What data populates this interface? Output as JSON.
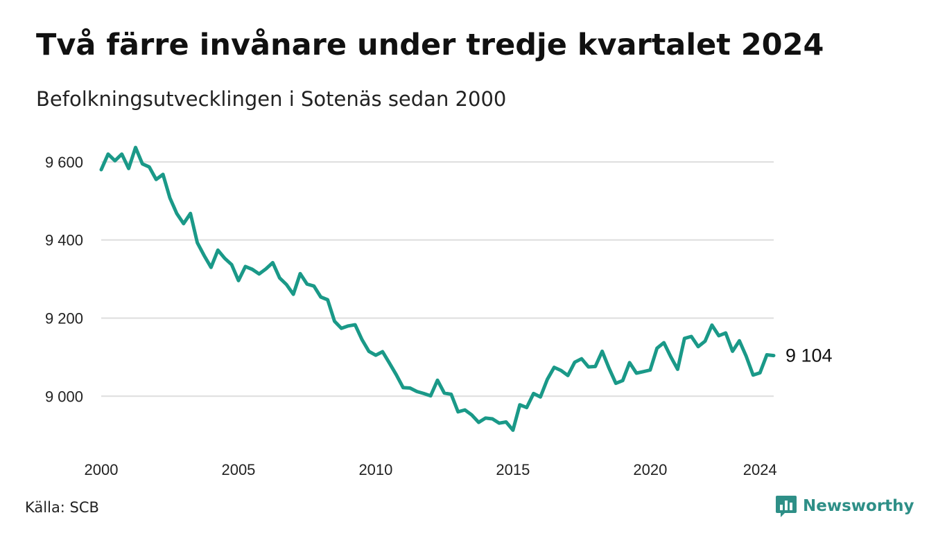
{
  "header": {
    "title": "Två färre invånare under tredje kvartalet 2024",
    "subtitle": "Befolkningsutvecklingen i Sotenäs sedan 2000"
  },
  "footer": {
    "source": "Källa: SCB",
    "brand": "Newsworthy",
    "brand_icon": "chart-speech-bubble-icon"
  },
  "colors": {
    "line": "#1a9988",
    "grid": "#dddddd",
    "brand": "#2e8f87"
  },
  "chart_data": {
    "type": "line",
    "title": "Två färre invånare under tredje kvartalet 2024",
    "subtitle": "Befolkningsutvecklingen i Sotenäs sedan 2000",
    "xlabel": "",
    "ylabel": "",
    "x_ticks": [
      2000,
      2005,
      2010,
      2015,
      2020,
      2024
    ],
    "y_ticks": [
      {
        "value": 9000,
        "label": "9 000"
      },
      {
        "value": 9200,
        "label": "9 200"
      },
      {
        "value": 9400,
        "label": "9 400"
      },
      {
        "value": 9600,
        "label": "9 600"
      }
    ],
    "xlim": [
      2000,
      2024.5
    ],
    "ylim": [
      8880,
      9660
    ],
    "grid": true,
    "end_label": "9 104",
    "series": [
      {
        "frequency": "quarterly",
        "values": [
          9580,
          9620,
          9603,
          9620,
          9583,
          9637,
          9595,
          9587,
          9555,
          9568,
          9508,
          9468,
          9442,
          9468,
          9393,
          9360,
          9330,
          9374,
          9353,
          9337,
          9296,
          9332,
          9325,
          9313,
          9326,
          9342,
          9303,
          9286,
          9261,
          9314,
          9287,
          9282,
          9254,
          9247,
          9192,
          9174,
          9180,
          9183,
          9145,
          9115,
          9105,
          9114,
          9085,
          9055,
          9022,
          9021,
          9012,
          9007,
          9001,
          9041,
          9008,
          9005,
          8960,
          8965,
          8952,
          8933,
          8944,
          8942,
          8931,
          8934,
          8913,
          8978,
          8971,
          9007,
          8998,
          9043,
          9074,
          9066,
          9053,
          9087,
          9096,
          9075,
          9076,
          9115,
          9072,
          9033,
          9040,
          9086,
          9059,
          9063,
          9067,
          9123,
          9137,
          9101,
          9069,
          9148,
          9153,
          9127,
          9141,
          9182,
          9155,
          9162,
          9115,
          9142,
          9102,
          9054,
          9060,
          9106,
          9104
        ]
      }
    ]
  }
}
